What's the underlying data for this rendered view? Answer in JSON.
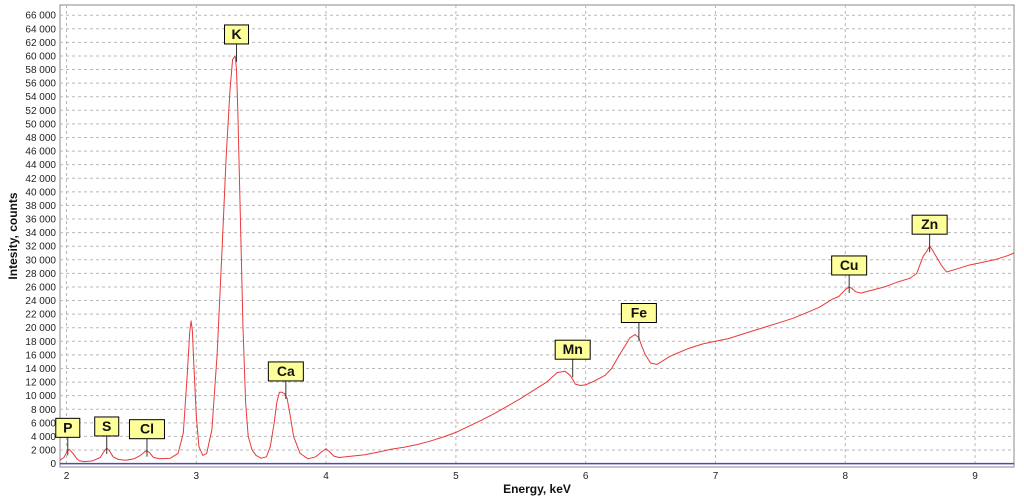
{
  "chart_data": {
    "type": "line",
    "title": "",
    "xlabel": "Energy, keV",
    "ylabel": "Intesity, counts",
    "xlim": [
      1.95,
      9.3
    ],
    "ylim": [
      -500,
      67500
    ],
    "x_ticks": [
      2,
      3,
      4,
      5,
      6,
      7,
      8,
      9
    ],
    "y_ticks": [
      0,
      2000,
      4000,
      6000,
      8000,
      10000,
      12000,
      14000,
      16000,
      18000,
      20000,
      22000,
      24000,
      26000,
      28000,
      30000,
      32000,
      34000,
      36000,
      38000,
      40000,
      42000,
      44000,
      46000,
      48000,
      50000,
      52000,
      54000,
      56000,
      58000,
      60000,
      62000,
      64000,
      66000
    ],
    "y_tick_labels": [
      "0",
      "2 000",
      "4 000",
      "6 000",
      "8 000",
      "10 000",
      "12 000",
      "14 000",
      "16 000",
      "18 000",
      "20 000",
      "22 000",
      "24 000",
      "26 000",
      "28 000",
      "30 000",
      "32 000",
      "34 000",
      "36 000",
      "38 000",
      "40 000",
      "42 000",
      "44 000",
      "46 000",
      "48 000",
      "50 000",
      "52 000",
      "54 000",
      "56 000",
      "58 000",
      "60 000",
      "62 000",
      "64 000",
      "66 000"
    ],
    "grid": true,
    "colors": {
      "series": "#e8393a",
      "label_bg": "#ffff99",
      "label_border": "#000000",
      "grid": "#b8b8b8",
      "baseline": "#4a4ab8"
    },
    "series": [
      {
        "name": "",
        "x": [
          1.95,
          1.98,
          2.0,
          2.02,
          2.05,
          2.08,
          2.1,
          2.14,
          2.2,
          2.26,
          2.29,
          2.31,
          2.33,
          2.36,
          2.4,
          2.46,
          2.52,
          2.57,
          2.6,
          2.62,
          2.64,
          2.67,
          2.72,
          2.8,
          2.86,
          2.9,
          2.93,
          2.95,
          2.96,
          2.97,
          2.98,
          3.0,
          3.02,
          3.05,
          3.08,
          3.12,
          3.16,
          3.2,
          3.23,
          3.26,
          3.28,
          3.3,
          3.31,
          3.32,
          3.34,
          3.36,
          3.38,
          3.4,
          3.43,
          3.46,
          3.5,
          3.54,
          3.57,
          3.6,
          3.62,
          3.64,
          3.66,
          3.68,
          3.7,
          3.72,
          3.75,
          3.8,
          3.86,
          3.92,
          3.97,
          4.0,
          4.03,
          4.06,
          4.1,
          4.2,
          4.3,
          4.4,
          4.5,
          4.6,
          4.7,
          4.8,
          4.9,
          5.0,
          5.1,
          5.2,
          5.3,
          5.4,
          5.5,
          5.6,
          5.7,
          5.78,
          5.84,
          5.88,
          5.9,
          5.92,
          5.96,
          6.0,
          6.05,
          6.1,
          6.15,
          6.2,
          6.26,
          6.3,
          6.34,
          6.38,
          6.41,
          6.43,
          6.46,
          6.5,
          6.55,
          6.6,
          6.65,
          6.7,
          6.8,
          6.9,
          7.0,
          7.1,
          7.2,
          7.3,
          7.4,
          7.5,
          7.6,
          7.7,
          7.8,
          7.9,
          7.95,
          8.0,
          8.03,
          8.05,
          8.08,
          8.12,
          8.2,
          8.3,
          8.4,
          8.5,
          8.55,
          8.6,
          8.63,
          8.65,
          8.67,
          8.7,
          8.74,
          8.78,
          8.85,
          8.95,
          9.05,
          9.15,
          9.25,
          9.3
        ],
        "values": [
          500,
          900,
          1600,
          2100,
          1500,
          700,
          400,
          300,
          400,
          900,
          1800,
          2300,
          1900,
          1000,
          600,
          500,
          700,
          1200,
          1700,
          1900,
          1600,
          900,
          700,
          800,
          1500,
          4500,
          13000,
          19500,
          21000,
          19500,
          15000,
          7000,
          2500,
          1200,
          1500,
          5000,
          16000,
          32000,
          45000,
          55000,
          59500,
          60000,
          58000,
          52000,
          36000,
          20000,
          9000,
          4000,
          2000,
          1200,
          800,
          1000,
          2500,
          6000,
          9000,
          10500,
          10500,
          10300,
          9600,
          7500,
          4000,
          1500,
          700,
          1000,
          1800,
          2200,
          1700,
          1100,
          900,
          1100,
          1300,
          1700,
          2100,
          2400,
          2800,
          3300,
          3900,
          4600,
          5500,
          6400,
          7400,
          8500,
          9600,
          10800,
          12000,
          13400,
          13600,
          13000,
          12400,
          11700,
          11500,
          11600,
          12000,
          12500,
          13000,
          14000,
          16000,
          17200,
          18500,
          19000,
          18500,
          17400,
          16000,
          14800,
          14600,
          15200,
          15800,
          16200,
          17000,
          17600,
          18000,
          18400,
          19000,
          19600,
          20200,
          20800,
          21400,
          22200,
          23000,
          24200,
          24600,
          25600,
          26000,
          25800,
          25300,
          25100,
          25500,
          26000,
          26700,
          27300,
          28000,
          30500,
          31300,
          32000,
          31500,
          30500,
          29200,
          28200,
          28600,
          29200,
          29600,
          30000,
          30600,
          31000
        ]
      }
    ],
    "annotations": [
      {
        "label": "P",
        "x": 2.01,
        "y": 2100
      },
      {
        "label": "S",
        "x": 2.31,
        "y": 2300
      },
      {
        "label": "Cl",
        "x": 2.62,
        "y": 1900
      },
      {
        "label": "K",
        "x": 3.31,
        "y": 60000
      },
      {
        "label": "Ca",
        "x": 3.69,
        "y": 10400
      },
      {
        "label": "Mn",
        "x": 5.9,
        "y": 13600
      },
      {
        "label": "Fe",
        "x": 6.41,
        "y": 19000
      },
      {
        "label": "Cu",
        "x": 8.03,
        "y": 26000
      },
      {
        "label": "Zn",
        "x": 8.65,
        "y": 32000
      }
    ]
  }
}
